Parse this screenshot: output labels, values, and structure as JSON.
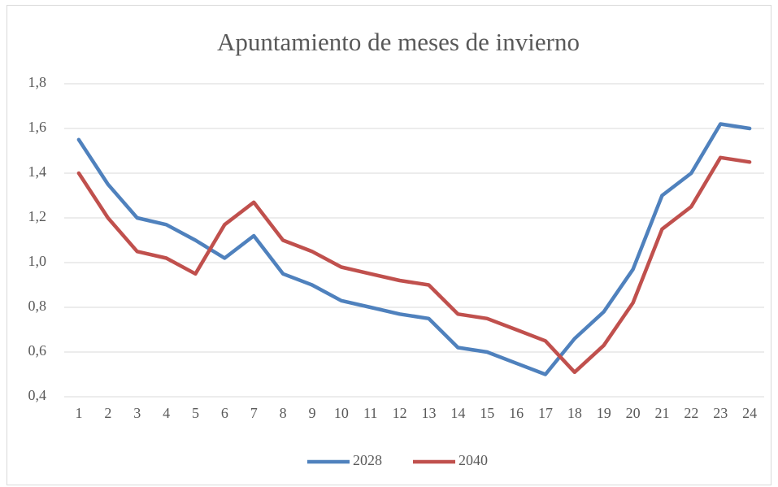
{
  "chart_data": {
    "type": "line",
    "title": "Apuntamiento de meses de invierno",
    "categories": [
      "1",
      "2",
      "3",
      "4",
      "5",
      "6",
      "7",
      "8",
      "9",
      "10",
      "11",
      "12",
      "13",
      "14",
      "15",
      "16",
      "17",
      "18",
      "19",
      "20",
      "21",
      "22",
      "23",
      "24"
    ],
    "series": [
      {
        "name": "2028",
        "color": "#4f81bd",
        "values": [
          1.55,
          1.35,
          1.2,
          1.17,
          1.1,
          1.02,
          1.12,
          0.95,
          0.9,
          0.83,
          0.8,
          0.77,
          0.75,
          0.62,
          0.6,
          0.55,
          0.5,
          0.66,
          0.78,
          0.97,
          1.3,
          1.4,
          1.62,
          1.6
        ]
      },
      {
        "name": "2040",
        "color": "#c0504d",
        "values": [
          1.4,
          1.2,
          1.05,
          1.02,
          0.95,
          1.17,
          1.27,
          1.1,
          1.05,
          0.98,
          0.95,
          0.92,
          0.9,
          0.77,
          0.75,
          0.7,
          0.65,
          0.51,
          0.63,
          0.82,
          1.15,
          1.25,
          1.47,
          1.45
        ]
      }
    ],
    "ylim": [
      0.4,
      1.8
    ],
    "yticks": [
      {
        "value": 0.4,
        "label": "0,4"
      },
      {
        "value": 0.6,
        "label": "0,6"
      },
      {
        "value": 0.8,
        "label": "0,8"
      },
      {
        "value": 1.0,
        "label": "1,0"
      },
      {
        "value": 1.2,
        "label": "1,2"
      },
      {
        "value": 1.4,
        "label": "1,4"
      },
      {
        "value": 1.6,
        "label": "1,6"
      },
      {
        "value": 1.8,
        "label": "1,8"
      }
    ],
    "grid": true,
    "legend": "bottom"
  }
}
